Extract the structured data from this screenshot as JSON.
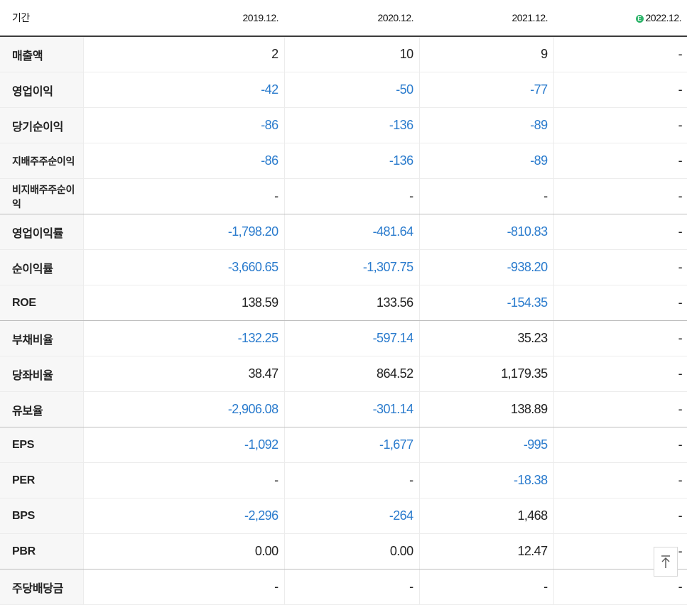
{
  "header": {
    "label": "기간",
    "periods": [
      "2019.12.",
      "2020.12.",
      "2021.12.",
      "2022.12."
    ],
    "estimate_badge": "E"
  },
  "rows": [
    {
      "label": "매출액",
      "values": [
        "2",
        "10",
        "9",
        "-"
      ]
    },
    {
      "label": "영업이익",
      "values": [
        "-42",
        "-50",
        "-77",
        "-"
      ]
    },
    {
      "label": "당기순이익",
      "values": [
        "-86",
        "-136",
        "-89",
        "-"
      ]
    },
    {
      "label": "지배주주순이익",
      "values": [
        "-86",
        "-136",
        "-89",
        "-"
      ]
    },
    {
      "label": "비지배주주순이익",
      "values": [
        "-",
        "-",
        "-",
        "-"
      ]
    },
    {
      "label": "영업이익률",
      "values": [
        "-1,798.20",
        "-481.64",
        "-810.83",
        "-"
      ]
    },
    {
      "label": "순이익률",
      "values": [
        "-3,660.65",
        "-1,307.75",
        "-938.20",
        "-"
      ]
    },
    {
      "label": "ROE",
      "values": [
        "138.59",
        "133.56",
        "-154.35",
        "-"
      ]
    },
    {
      "label": "부채비율",
      "values": [
        "-132.25",
        "-597.14",
        "35.23",
        "-"
      ]
    },
    {
      "label": "당좌비율",
      "values": [
        "38.47",
        "864.52",
        "1,179.35",
        "-"
      ]
    },
    {
      "label": "유보율",
      "values": [
        "-2,906.08",
        "-301.14",
        "138.89",
        "-"
      ]
    },
    {
      "label": "EPS",
      "values": [
        "-1,092",
        "-1,677",
        "-995",
        "-"
      ]
    },
    {
      "label": "PER",
      "values": [
        "-",
        "-",
        "-18.38",
        "-"
      ]
    },
    {
      "label": "BPS",
      "values": [
        "-2,296",
        "-264",
        "1,468",
        "-"
      ]
    },
    {
      "label": "PBR",
      "values": [
        "0.00",
        "0.00",
        "12.47",
        "-"
      ]
    },
    {
      "label": "주당배당금",
      "values": [
        "-",
        "-",
        "-",
        "-"
      ]
    }
  ],
  "colors": {
    "negative": "#2a7bcd",
    "estimate": "#2db46a"
  },
  "scroll_top_icon": "arrow-up-to-top-icon"
}
